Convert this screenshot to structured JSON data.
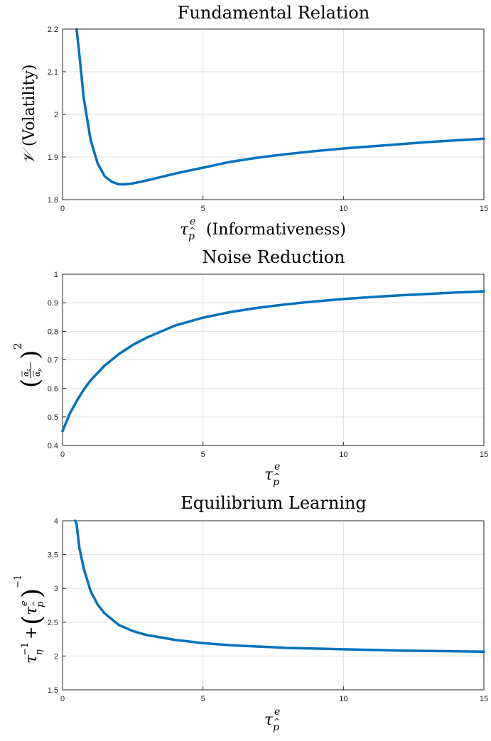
{
  "chart_data": [
    {
      "type": "line",
      "title": "Fundamental Relation",
      "xlabel": "τ_p̂^e (Informativeness)",
      "ylabel": "𝒱 (Volatility)",
      "xlim": [
        0,
        15
      ],
      "ylim": [
        1.8,
        2.2
      ],
      "xticks": [
        "0",
        "5",
        "10",
        "15"
      ],
      "yticks": [
        "1.8",
        "1.9",
        "2",
        "2.1",
        "2.2"
      ],
      "grid": true,
      "color": "#0072bd",
      "x": [
        0.5,
        0.6,
        0.75,
        1.0,
        1.25,
        1.5,
        1.75,
        2.0,
        2.25,
        2.5,
        3.0,
        3.5,
        4.0,
        5.0,
        6.0,
        7.0,
        8.0,
        9.0,
        10.0,
        11.0,
        12.0,
        13.0,
        14.0,
        15.0
      ],
      "y": [
        2.22,
        2.14,
        2.04,
        1.94,
        1.885,
        1.855,
        1.842,
        1.836,
        1.836,
        1.838,
        1.845,
        1.853,
        1.861,
        1.875,
        1.889,
        1.899,
        1.907,
        1.914,
        1.92,
        1.925,
        1.93,
        1.935,
        1.939,
        1.943
      ]
    },
    {
      "type": "line",
      "title": "Noise Reduction",
      "xlabel": "τ_p̂^e",
      "ylabel": "(ᾱ_z / ᾱ_p)²",
      "xlim": [
        0,
        15
      ],
      "ylim": [
        0.4,
        1.0
      ],
      "xticks": [
        "0",
        "5",
        "10",
        "15"
      ],
      "yticks": [
        "0.4",
        "0.5",
        "0.6",
        "0.7",
        "0.8",
        "0.9",
        "1"
      ],
      "grid": true,
      "color": "#0072bd",
      "x": [
        0.0,
        0.25,
        0.5,
        0.75,
        1.0,
        1.5,
        2.0,
        2.5,
        3.0,
        4.0,
        5.0,
        6.0,
        7.0,
        8.0,
        9.0,
        10.0,
        11.0,
        12.0,
        13.0,
        14.0,
        15.0
      ],
      "y": [
        0.45,
        0.51,
        0.555,
        0.595,
        0.628,
        0.68,
        0.72,
        0.752,
        0.778,
        0.82,
        0.848,
        0.868,
        0.883,
        0.895,
        0.905,
        0.913,
        0.92,
        0.926,
        0.931,
        0.936,
        0.94
      ]
    },
    {
      "type": "line",
      "title": "Equilibrium Learning",
      "xlabel": "τ_p̂^e",
      "ylabel": "τ_η^-1 + (τ_p̂^e)^-1",
      "xlim": [
        0,
        15
      ],
      "ylim": [
        1.5,
        4
      ],
      "xticks": [
        "0",
        "5",
        "10",
        "15"
      ],
      "yticks": [
        "1.5",
        "2",
        "2.5",
        "3",
        "3.5",
        "4"
      ],
      "grid": true,
      "color": "#0072bd",
      "x": [
        0.45,
        0.5,
        0.6,
        0.75,
        1.0,
        1.25,
        1.5,
        2.0,
        2.5,
        3.0,
        4.0,
        5.0,
        6.0,
        7.0,
        8.0,
        9.0,
        10.0,
        11.0,
        12.0,
        13.0,
        14.0,
        15.0
      ],
      "y": [
        4.05,
        3.95,
        3.6,
        3.3,
        2.96,
        2.76,
        2.63,
        2.46,
        2.37,
        2.31,
        2.24,
        2.19,
        2.16,
        2.14,
        2.12,
        2.11,
        2.1,
        2.09,
        2.08,
        2.075,
        2.07,
        2.065
      ]
    }
  ]
}
